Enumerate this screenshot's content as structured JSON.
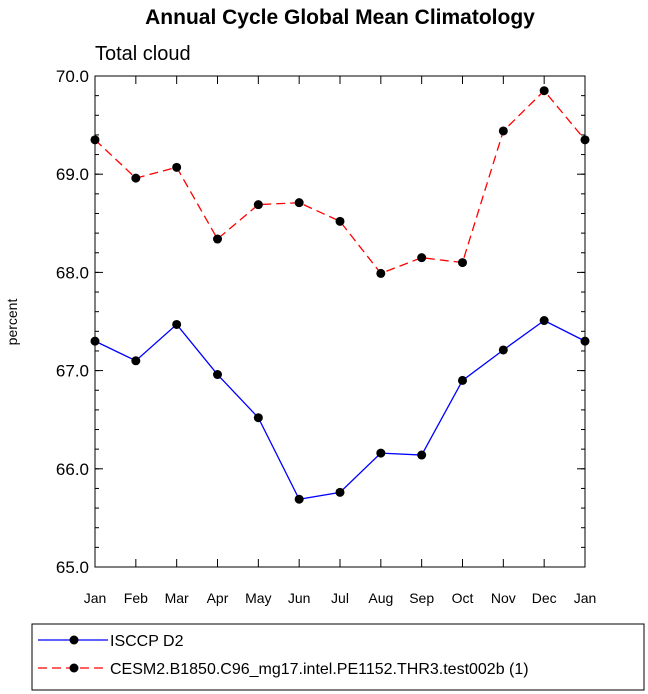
{
  "chart_data": {
    "type": "line",
    "title": "Annual Cycle Global Mean Climatology",
    "subtitle": "Total cloud",
    "xlabel": "",
    "ylabel": "percent",
    "categories": [
      "Jan",
      "Feb",
      "Mar",
      "Apr",
      "May",
      "Jun",
      "Jul",
      "Aug",
      "Sep",
      "Oct",
      "Nov",
      "Dec",
      "Jan"
    ],
    "ylim": [
      65.0,
      70.0
    ],
    "yticks": [
      "65.0",
      "66.0",
      "67.0",
      "68.0",
      "69.0",
      "70.0"
    ],
    "legend_position": "bottom",
    "series": [
      {
        "name": "ISCCP D2",
        "color": "#0000ff",
        "linestyle": "solid",
        "values": [
          67.3,
          67.1,
          67.47,
          66.96,
          66.52,
          65.69,
          65.76,
          66.16,
          66.14,
          66.9,
          67.21,
          67.51,
          67.3
        ]
      },
      {
        "name": "CESM2.B1850.C96_mg17.intel.PE1152.THR3.test002b (1)",
        "color": "#ff0000",
        "linestyle": "dashed",
        "values": [
          69.35,
          68.96,
          69.07,
          68.34,
          68.69,
          68.71,
          68.52,
          67.99,
          68.15,
          68.1,
          69.44,
          69.85,
          69.35
        ]
      }
    ]
  }
}
